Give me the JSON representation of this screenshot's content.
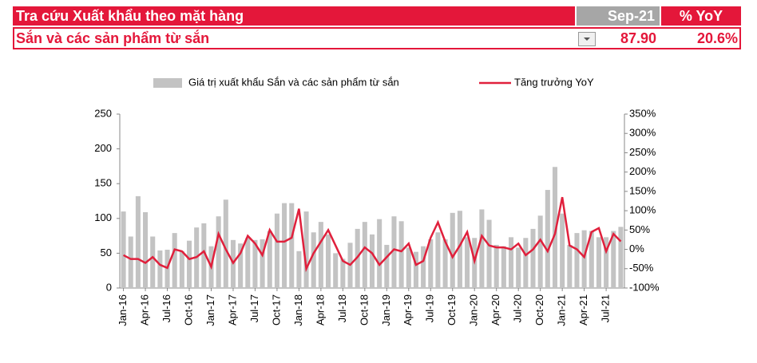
{
  "header": {
    "title": "Tra cứu Xuất khẩu theo mặt hàng",
    "period": "Sep-21",
    "metric": "% YoY"
  },
  "row": {
    "item": "Sắn và các sản phẩm từ sắn",
    "value": "87.90",
    "yoy": "20.6%"
  },
  "chart_data": {
    "type": "combo",
    "categories": [
      "Jan-16",
      null,
      null,
      "Apr-16",
      null,
      null,
      "Jul-16",
      null,
      null,
      "Oct-16",
      null,
      null,
      "Jan-17",
      null,
      null,
      "Apr-17",
      null,
      null,
      "Jul-17",
      null,
      null,
      "Oct-17",
      null,
      null,
      "Jan-18",
      null,
      null,
      "Apr-18",
      null,
      null,
      "Jul-18",
      null,
      null,
      "Oct-18",
      null,
      null,
      "Jan-19",
      null,
      null,
      "Apr-19",
      null,
      null,
      "Jul-19",
      null,
      null,
      "Oct-19",
      null,
      null,
      "Jan-20",
      null,
      null,
      "Apr-20",
      null,
      null,
      "Jul-20",
      null,
      null,
      "Oct-20",
      null,
      null,
      "Jan-21",
      null,
      null,
      "Apr-21",
      null,
      null,
      "Jul-21",
      null,
      null
    ],
    "series": [
      {
        "name": "Giá trị xuất khẩu Sắn và các sản phẩm từ sắn",
        "type": "bar",
        "color": "#c3c3c3",
        "values": [
          110,
          74,
          132,
          109,
          74,
          54,
          55,
          79,
          53,
          68,
          87,
          93,
          60,
          103,
          127,
          69,
          64,
          72,
          69,
          70,
          82,
          107,
          122,
          122,
          53,
          110,
          80,
          95,
          77,
          50,
          42,
          65,
          85,
          95,
          77,
          99,
          62,
          103,
          96,
          58,
          52,
          60,
          70,
          80,
          70,
          108,
          111,
          73,
          72,
          113,
          98,
          62,
          60,
          73,
          58,
          72,
          85,
          104,
          141,
          174,
          107,
          62,
          79,
          83,
          82,
          73,
          73,
          82,
          87.9
        ]
      },
      {
        "name": "Tăng trưởng YoY",
        "type": "line",
        "axis": "y2",
        "color": "#e0203c",
        "values": [
          -15,
          -25,
          -25,
          -35,
          -20,
          -40,
          -48,
          0,
          -5,
          -25,
          -20,
          -5,
          -45,
          40,
          0,
          -35,
          -10,
          35,
          15,
          -15,
          50,
          20,
          20,
          30,
          105,
          -50,
          -10,
          20,
          50,
          10,
          -30,
          -40,
          -20,
          5,
          -10,
          -40,
          -20,
          0,
          -5,
          15,
          -40,
          -30,
          30,
          70,
          20,
          -20,
          10,
          45,
          -30,
          35,
          10,
          5,
          5,
          0,
          15,
          -15,
          0,
          25,
          -5,
          40,
          135,
          10,
          0,
          -20,
          45,
          55,
          -5,
          40,
          20.6
        ]
      }
    ],
    "ylim": [
      0,
      250
    ],
    "yticks": [
      0,
      50,
      100,
      150,
      200,
      250
    ],
    "y2lim": [
      -100,
      350
    ],
    "y2ticks": [
      {
        "value": -100,
        "label": "-100%"
      },
      {
        "value": -50,
        "label": "-50%"
      },
      {
        "value": 0,
        "label": "0%"
      },
      {
        "value": 50,
        "label": "50%"
      },
      {
        "value": 100,
        "label": "100%"
      },
      {
        "value": 150,
        "label": "150%"
      },
      {
        "value": 200,
        "label": "200%"
      },
      {
        "value": 250,
        "label": "250%"
      },
      {
        "value": 300,
        "label": "300%"
      },
      {
        "value": 350,
        "label": "350%"
      }
    ],
    "grid": false,
    "legend": "top"
  }
}
